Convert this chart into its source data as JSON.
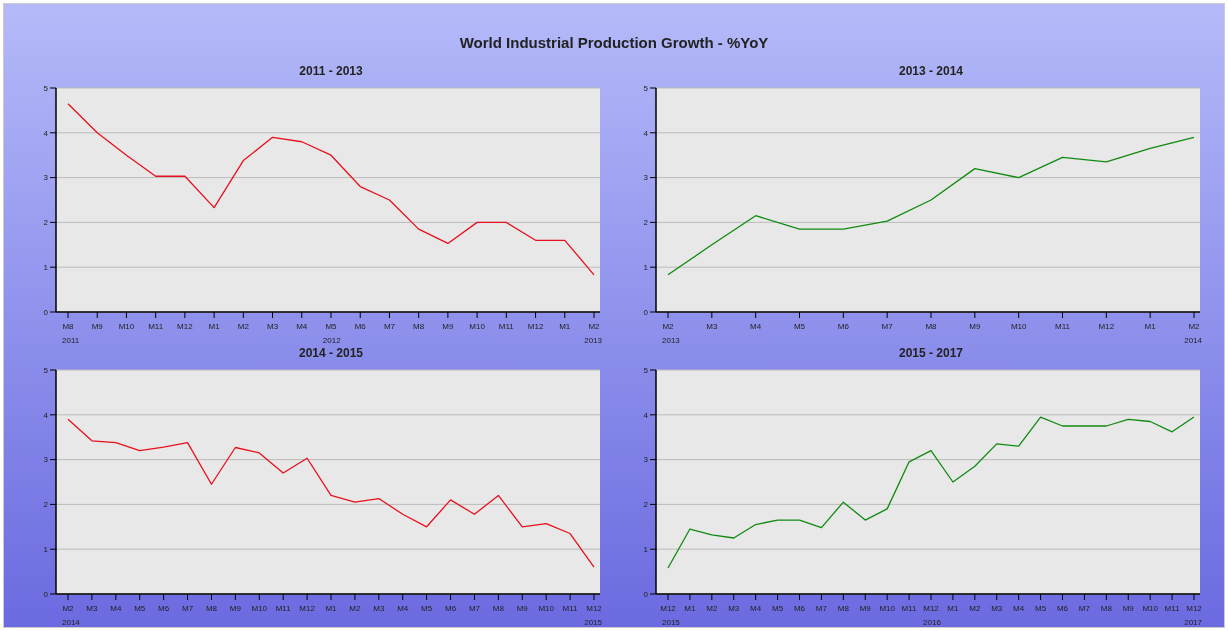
{
  "chart_data": [
    {
      "type": "other",
      "title": "World Industrial Production Growth - %YoY"
    },
    {
      "type": "line",
      "title": "2011 - 2013",
      "categories": [
        "M8",
        "M9",
        "M10",
        "M11",
        "M12",
        "M1",
        "M2",
        "M3",
        "M4",
        "M5",
        "M6",
        "M7",
        "M8",
        "M9",
        "M10",
        "M11",
        "M12",
        "M1",
        "M2"
      ],
      "series": [
        {
          "color": "#e8101c",
          "values": [
            4.65,
            4.0,
            3.5,
            3.03,
            3.03,
            2.33,
            3.38,
            3.9,
            3.8,
            3.5,
            2.8,
            2.5,
            1.85,
            1.53,
            2.0,
            2.0,
            1.6,
            1.6,
            0.83
          ]
        }
      ],
      "ylim": [
        0,
        5
      ],
      "yticks": [
        0,
        1,
        2,
        3,
        4,
        5
      ],
      "grid": "y",
      "marker": "none",
      "line_style": "solid",
      "annotations": [
        "2011",
        "2012",
        "2013"
      ]
    },
    {
      "type": "line",
      "title": "2013 - 2014",
      "categories": [
        "M2",
        "M3",
        "M4",
        "M5",
        "M6",
        "M7",
        "M8",
        "M9",
        "M10",
        "M11",
        "M12",
        "M1",
        "M2"
      ],
      "series": [
        {
          "color": "#108a10",
          "values": [
            0.83,
            1.5,
            2.15,
            1.85,
            1.85,
            2.03,
            2.5,
            3.2,
            3.0,
            3.45,
            3.35,
            3.65,
            3.9
          ]
        }
      ],
      "ylim": [
        0,
        5
      ],
      "yticks": [
        0,
        1,
        2,
        3,
        4,
        5
      ],
      "grid": "y",
      "marker": "none",
      "line_style": "solid",
      "annotations": [
        "2013",
        "2014"
      ]
    },
    {
      "type": "line",
      "title": "2014 - 2015",
      "categories": [
        "M2",
        "M3",
        "M4",
        "M5",
        "M6",
        "M7",
        "M8",
        "M9",
        "M10",
        "M11",
        "M12",
        "M1",
        "M2",
        "M3",
        "M4",
        "M5",
        "M6",
        "M7",
        "M8",
        "M9",
        "M10",
        "M11",
        "M12"
      ],
      "series": [
        {
          "color": "#e8101c",
          "values": [
            3.9,
            3.42,
            3.38,
            3.2,
            3.28,
            3.38,
            2.45,
            3.27,
            3.15,
            2.7,
            3.03,
            2.2,
            2.05,
            2.13,
            1.78,
            1.5,
            2.1,
            1.78,
            2.2,
            1.5,
            1.57,
            1.35,
            0.6
          ]
        }
      ],
      "ylim": [
        0,
        5
      ],
      "yticks": [
        0,
        1,
        2,
        3,
        4,
        5
      ],
      "grid": "y",
      "marker": "none",
      "line_style": "solid",
      "annotations": [
        "2014",
        "2015"
      ]
    },
    {
      "type": "line",
      "title": "2015 - 2017",
      "categories": [
        "M12",
        "M1",
        "M2",
        "M3",
        "M4",
        "M5",
        "M6",
        "M7",
        "M8",
        "M9",
        "M10",
        "M11",
        "M12",
        "M1",
        "M2",
        "M3",
        "M4",
        "M5",
        "M6",
        "M7",
        "M8",
        "M9",
        "M10",
        "M11",
        "M12"
      ],
      "series": [
        {
          "color": "#108a10",
          "values": [
            0.58,
            1.45,
            1.32,
            1.25,
            1.55,
            1.65,
            1.65,
            1.48,
            2.05,
            1.65,
            1.9,
            2.95,
            3.2,
            2.5,
            2.85,
            3.35,
            3.3,
            3.95,
            3.75,
            3.75,
            3.75,
            3.9,
            3.85,
            3.62,
            3.95
          ]
        }
      ],
      "ylim": [
        0,
        5
      ],
      "yticks": [
        0,
        1,
        2,
        3,
        4,
        5
      ],
      "grid": "y",
      "marker": "none",
      "line_style": "solid",
      "annotations": [
        "2015",
        "2016",
        "2017"
      ]
    }
  ]
}
